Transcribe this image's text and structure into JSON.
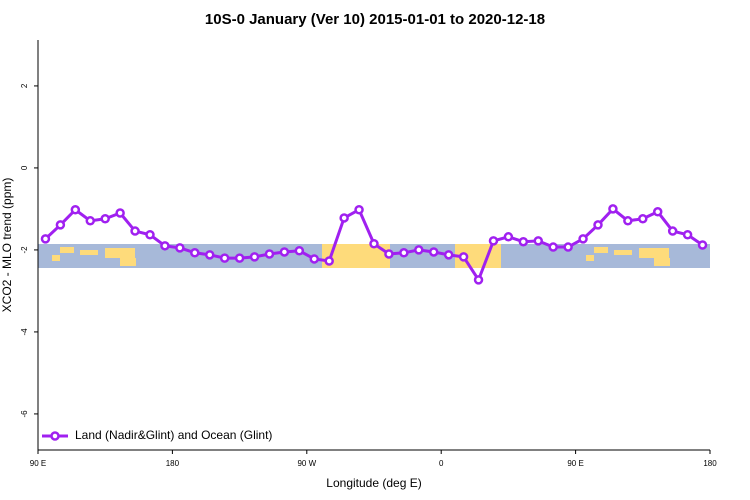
{
  "chart_data": {
    "type": "line",
    "title": "10S-0 January (Ver 10)   2015-01-01 to 2020-12-18",
    "x_label": "Longitude (deg E)",
    "y_label": "XCO2 - MLO trend (ppm)",
    "x": [
      95,
      105,
      115,
      125,
      135,
      145,
      155,
      165,
      175,
      185,
      195,
      205,
      215,
      225,
      235,
      245,
      255,
      265,
      275,
      285,
      295,
      305,
      315,
      325,
      335,
      345,
      355,
      365,
      375,
      385,
      395,
      405,
      415,
      425,
      435,
      445,
      455,
      465,
      475,
      485,
      495,
      505,
      515,
      525,
      535
    ],
    "series": [
      {
        "name": "Land (Nadir&Glint) and Ocean (Glint)",
        "color": "#a020f0",
        "values": [
          -1.73,
          -1.39,
          -1.02,
          -1.29,
          -1.24,
          -1.1,
          -1.54,
          -1.63,
          -1.9,
          -1.95,
          -2.07,
          -2.12,
          -2.2,
          -2.2,
          -2.17,
          -2.1,
          -2.05,
          -2.02,
          -2.22,
          -2.27,
          -1.22,
          -1.02,
          -1.85,
          -2.1,
          -2.07,
          -2.0,
          -2.05,
          -2.12,
          -2.17,
          -2.73,
          -1.78,
          -1.68,
          -1.8,
          -1.78,
          -1.93,
          -1.93,
          -1.73,
          -1.39,
          -1.0,
          -1.29,
          -1.24,
          -1.07,
          -1.54,
          -1.63,
          -1.88
        ]
      }
    ],
    "xlim": [
      90,
      540
    ],
    "xticks": [
      {
        "value": 90,
        "label": "90 E"
      },
      180,
      {
        "value": 270,
        "label": "90 W"
      },
      {
        "value": 360,
        "label": "0"
      },
      {
        "value": 450,
        "label": "90 E"
      },
      {
        "value": 540,
        "label": "180"
      }
    ],
    "ylim": [
      -6.88,
      3.12
    ],
    "yticks": [
      2,
      0,
      -2,
      -4,
      -6
    ],
    "legend": "bottom-left"
  }
}
